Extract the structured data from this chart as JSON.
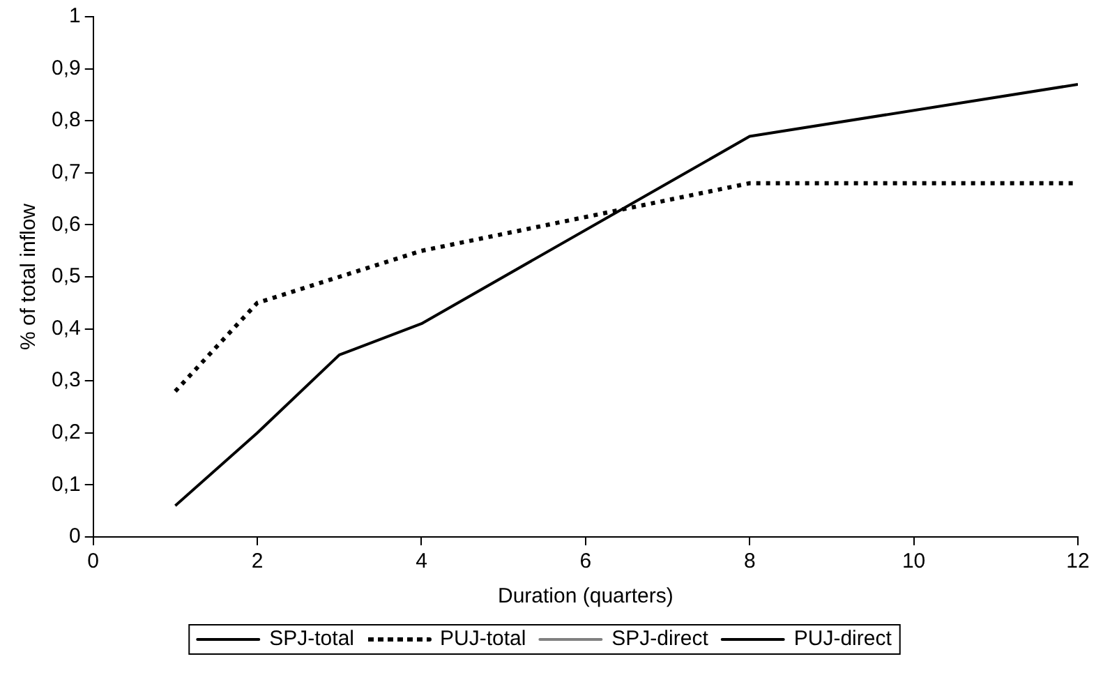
{
  "chart_data": {
    "type": "line",
    "xlabel": "Duration (quarters)",
    "ylabel": "% of total inflow",
    "xlim": [
      0,
      12
    ],
    "xticks": [
      0,
      2,
      4,
      6,
      8,
      10,
      12
    ],
    "ylim": [
      0,
      1
    ],
    "yticks": [
      0,
      {
        "value": 0.1,
        "label": "0,1"
      },
      {
        "value": 0.2,
        "label": "0,2"
      },
      {
        "value": 0.3,
        "label": "0,3"
      },
      {
        "value": 0.4,
        "label": "0,4"
      },
      {
        "value": 0.5,
        "label": "0,5"
      },
      {
        "value": 0.6,
        "label": "0,6"
      },
      {
        "value": 0.7,
        "label": "0,7"
      },
      {
        "value": 0.8,
        "label": "0,8"
      },
      {
        "value": 0.9,
        "label": "0,9"
      },
      1
    ],
    "x": [
      1,
      2,
      3,
      4,
      8,
      12
    ],
    "series": [
      {
        "name": "SPJ-total",
        "color": "#000000",
        "line_style": "solid",
        "values": [
          0.06,
          0.2,
          0.35,
          0.41,
          0.77,
          0.87
        ]
      },
      {
        "name": "PUJ-total",
        "color": "#000000",
        "line_style": "dotted",
        "values": [
          0.28,
          0.45,
          0.5,
          0.55,
          0.68,
          0.68
        ]
      },
      {
        "name": "SPJ-direct",
        "color": "#808080",
        "line_style": "solid",
        "values": [
          null,
          null,
          null,
          null,
          null,
          null
        ]
      },
      {
        "name": "PUJ-direct",
        "color": "#000000",
        "line_style": "solid",
        "values": [
          null,
          null,
          null,
          null,
          null,
          null
        ]
      }
    ],
    "legend": "bottom",
    "grid": false,
    "marker": "none"
  }
}
